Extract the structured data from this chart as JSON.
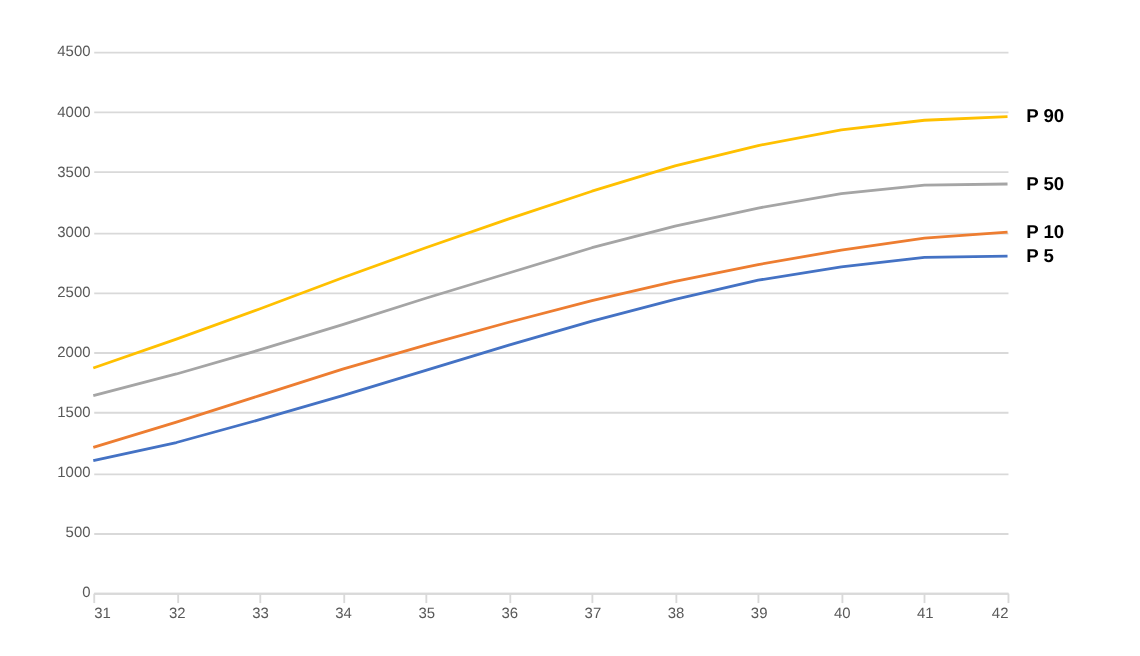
{
  "chart_data": {
    "type": "line",
    "x": [
      31,
      32,
      33,
      34,
      35,
      36,
      37,
      38,
      39,
      40,
      41,
      42
    ],
    "series": [
      {
        "name": "P 5",
        "color": "#4472c4",
        "values": [
          1100,
          1250,
          1440,
          1640,
          1850,
          2060,
          2260,
          2440,
          2600,
          2710,
          2790,
          2800
        ]
      },
      {
        "name": "P 10",
        "color": "#ed7d31",
        "values": [
          1210,
          1420,
          1640,
          1860,
          2060,
          2250,
          2430,
          2590,
          2730,
          2850,
          2950,
          3000
        ]
      },
      {
        "name": "P 50",
        "color": "#a5a5a5",
        "values": [
          1640,
          1820,
          2020,
          2230,
          2450,
          2660,
          2870,
          3050,
          3200,
          3320,
          3390,
          3400
        ]
      },
      {
        "name": "P 90",
        "color": "#ffc000",
        "values": [
          1870,
          2110,
          2360,
          2620,
          2870,
          3110,
          3340,
          3550,
          3720,
          3850,
          3930,
          3960
        ]
      }
    ],
    "xlim": [
      31,
      42
    ],
    "xticks": [
      31,
      32,
      33,
      34,
      35,
      36,
      37,
      38,
      39,
      40,
      41,
      42
    ],
    "ylim": [
      0,
      4500
    ],
    "yticks": [
      0,
      500,
      1000,
      1500,
      2000,
      2500,
      3000,
      3500,
      4000,
      4500
    ],
    "grid": "y",
    "legend": false,
    "marker": "none",
    "line_style": "solid"
  }
}
